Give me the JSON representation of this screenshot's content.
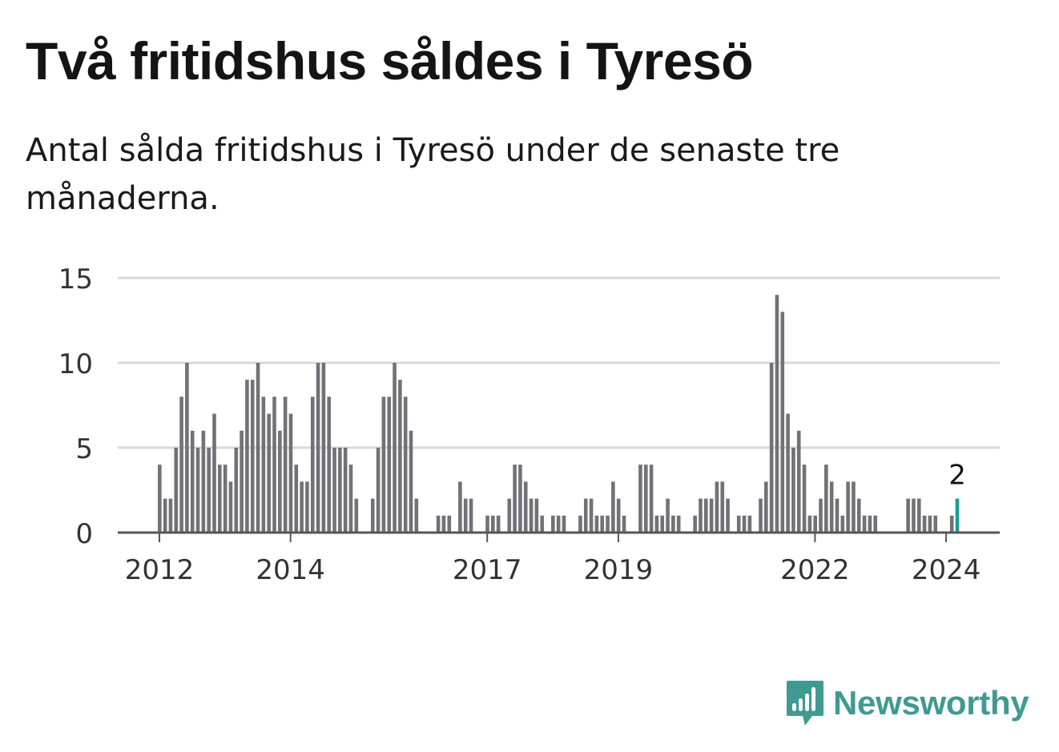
{
  "title": "Två fritidshus såldes i Tyresö",
  "subtitle": "Antal sålda fritidshus i Tyresö under de senaste tre månaderna.",
  "brand": {
    "name": "Newsworthy",
    "color": "#3f9a92",
    "icon": "newsworthy-logo-icon"
  },
  "colors": {
    "bar": "#727178",
    "highlight": "#1a9c98",
    "grid": "#d9d9d9",
    "axis": "#555555"
  },
  "chart_data": {
    "type": "bar",
    "title": "",
    "xlabel": "",
    "ylabel": "",
    "ylim": [
      0,
      15
    ],
    "yticks": [
      0,
      5,
      10,
      15
    ],
    "grid": true,
    "x_ticks": [
      {
        "label": "2012",
        "year": 2012
      },
      {
        "label": "2014",
        "year": 2014
      },
      {
        "label": "2017",
        "year": 2017
      },
      {
        "label": "2019",
        "year": 2019
      },
      {
        "label": "2022",
        "year": 2022
      },
      {
        "label": "2024",
        "year": 2024
      }
    ],
    "bars": [
      [
        "2012-01",
        4
      ],
      [
        "2012-02",
        2
      ],
      [
        "2012-03",
        2
      ],
      [
        "2012-04",
        5
      ],
      [
        "2012-05",
        8
      ],
      [
        "2012-06",
        10
      ],
      [
        "2012-07",
        6
      ],
      [
        "2012-08",
        5
      ],
      [
        "2012-09",
        6
      ],
      [
        "2012-10",
        5
      ],
      [
        "2012-11",
        7
      ],
      [
        "2012-12",
        4
      ],
      [
        "2013-01",
        4
      ],
      [
        "2013-02",
        3
      ],
      [
        "2013-03",
        5
      ],
      [
        "2013-04",
        6
      ],
      [
        "2013-05",
        9
      ],
      [
        "2013-06",
        9
      ],
      [
        "2013-07",
        10
      ],
      [
        "2013-08",
        8
      ],
      [
        "2013-09",
        7
      ],
      [
        "2013-10",
        8
      ],
      [
        "2013-11",
        6
      ],
      [
        "2013-12",
        8
      ],
      [
        "2014-01",
        7
      ],
      [
        "2014-02",
        4
      ],
      [
        "2014-03",
        3
      ],
      [
        "2014-04",
        3
      ],
      [
        "2014-05",
        8
      ],
      [
        "2014-06",
        10
      ],
      [
        "2014-07",
        10
      ],
      [
        "2014-08",
        8
      ],
      [
        "2014-09",
        5
      ],
      [
        "2014-10",
        5
      ],
      [
        "2014-11",
        5
      ],
      [
        "2014-12",
        4
      ],
      [
        "2015-01",
        2
      ],
      [
        "2015-02",
        0
      ],
      [
        "2015-03",
        0
      ],
      [
        "2015-04",
        2
      ],
      [
        "2015-05",
        5
      ],
      [
        "2015-06",
        8
      ],
      [
        "2015-07",
        8
      ],
      [
        "2015-08",
        10
      ],
      [
        "2015-09",
        9
      ],
      [
        "2015-10",
        8
      ],
      [
        "2015-11",
        6
      ],
      [
        "2015-12",
        2
      ],
      [
        "2016-01",
        0
      ],
      [
        "2016-02",
        0
      ],
      [
        "2016-03",
        0
      ],
      [
        "2016-04",
        1
      ],
      [
        "2016-05",
        1
      ],
      [
        "2016-06",
        1
      ],
      [
        "2016-07",
        0
      ],
      [
        "2016-08",
        3
      ],
      [
        "2016-09",
        2
      ],
      [
        "2016-10",
        2
      ],
      [
        "2016-11",
        0
      ],
      [
        "2016-12",
        0
      ],
      [
        "2017-01",
        1
      ],
      [
        "2017-02",
        1
      ],
      [
        "2017-03",
        1
      ],
      [
        "2017-04",
        0
      ],
      [
        "2017-05",
        2
      ],
      [
        "2017-06",
        4
      ],
      [
        "2017-07",
        4
      ],
      [
        "2017-08",
        3
      ],
      [
        "2017-09",
        2
      ],
      [
        "2017-10",
        2
      ],
      [
        "2017-11",
        1
      ],
      [
        "2017-12",
        0
      ],
      [
        "2018-01",
        1
      ],
      [
        "2018-02",
        1
      ],
      [
        "2018-03",
        1
      ],
      [
        "2018-04",
        0
      ],
      [
        "2018-05",
        0
      ],
      [
        "2018-06",
        1
      ],
      [
        "2018-07",
        2
      ],
      [
        "2018-08",
        2
      ],
      [
        "2018-09",
        1
      ],
      [
        "2018-10",
        1
      ],
      [
        "2018-11",
        1
      ],
      [
        "2018-12",
        3
      ],
      [
        "2019-01",
        2
      ],
      [
        "2019-02",
        1
      ],
      [
        "2019-03",
        0
      ],
      [
        "2019-04",
        0
      ],
      [
        "2019-05",
        4
      ],
      [
        "2019-06",
        4
      ],
      [
        "2019-07",
        4
      ],
      [
        "2019-08",
        1
      ],
      [
        "2019-09",
        1
      ],
      [
        "2019-10",
        2
      ],
      [
        "2019-11",
        1
      ],
      [
        "2019-12",
        1
      ],
      [
        "2020-01",
        0
      ],
      [
        "2020-02",
        0
      ],
      [
        "2020-03",
        1
      ],
      [
        "2020-04",
        2
      ],
      [
        "2020-05",
        2
      ],
      [
        "2020-06",
        2
      ],
      [
        "2020-07",
        3
      ],
      [
        "2020-08",
        3
      ],
      [
        "2020-09",
        2
      ],
      [
        "2020-10",
        0
      ],
      [
        "2020-11",
        1
      ],
      [
        "2020-12",
        1
      ],
      [
        "2021-01",
        1
      ],
      [
        "2021-02",
        0
      ],
      [
        "2021-03",
        2
      ],
      [
        "2021-04",
        3
      ],
      [
        "2021-05",
        10
      ],
      [
        "2021-06",
        14
      ],
      [
        "2021-07",
        13
      ],
      [
        "2021-08",
        7
      ],
      [
        "2021-09",
        5
      ],
      [
        "2021-10",
        6
      ],
      [
        "2021-11",
        4
      ],
      [
        "2021-12",
        1
      ],
      [
        "2022-01",
        1
      ],
      [
        "2022-02",
        2
      ],
      [
        "2022-03",
        4
      ],
      [
        "2022-04",
        3
      ],
      [
        "2022-05",
        2
      ],
      [
        "2022-06",
        1
      ],
      [
        "2022-07",
        3
      ],
      [
        "2022-08",
        3
      ],
      [
        "2022-09",
        2
      ],
      [
        "2022-10",
        1
      ],
      [
        "2022-11",
        1
      ],
      [
        "2022-12",
        1
      ],
      [
        "2023-01",
        0
      ],
      [
        "2023-02",
        0
      ],
      [
        "2023-03",
        0
      ],
      [
        "2023-04",
        0
      ],
      [
        "2023-05",
        0
      ],
      [
        "2023-06",
        2
      ],
      [
        "2023-07",
        2
      ],
      [
        "2023-08",
        2
      ],
      [
        "2023-09",
        1
      ],
      [
        "2023-10",
        1
      ],
      [
        "2023-11",
        1
      ],
      [
        "2023-12",
        0
      ],
      [
        "2024-01",
        0
      ],
      [
        "2024-02",
        1
      ],
      [
        "2024-03",
        2
      ]
    ],
    "highlight": {
      "month": "2024-03",
      "value": 2,
      "label": "2"
    }
  }
}
